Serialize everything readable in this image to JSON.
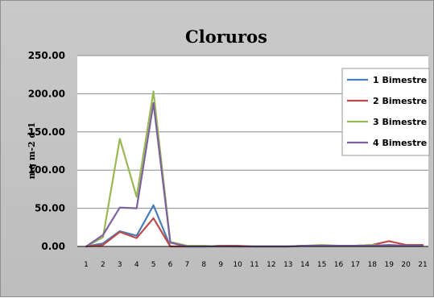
{
  "chart_data": {
    "type": "line",
    "title": "Cloruros",
    "xlabel": "",
    "ylabel": "mg m-2 d-1",
    "ylim": [
      0,
      250
    ],
    "yticks": [
      "0.00",
      "50.00",
      "100.00",
      "150.00",
      "200.00",
      "250.00"
    ],
    "x": [
      "1",
      "2",
      "3",
      "4",
      "5",
      "6",
      "7",
      "8",
      "9",
      "10",
      "11",
      "12",
      "13",
      "14",
      "15",
      "16",
      "17",
      "18",
      "19",
      "20",
      "21"
    ],
    "grid": true,
    "legend_position": "right",
    "series": [
      {
        "name": "1 Bimestre",
        "color": "#4a7ebb",
        "values": [
          0,
          4,
          20,
          14,
          54,
          0,
          0,
          0,
          1,
          0,
          0,
          0,
          0,
          1,
          1,
          1,
          1,
          1,
          1,
          1,
          1
        ]
      },
      {
        "name": "2 Bimestre",
        "color": "#be4b48",
        "values": [
          0,
          2,
          19,
          11,
          37,
          0,
          0,
          0,
          1,
          1,
          0,
          0,
          0,
          1,
          1,
          1,
          1,
          2,
          7,
          2,
          2
        ]
      },
      {
        "name": "3 Bimestre",
        "color": "#98b954",
        "values": [
          0,
          12,
          141,
          65,
          203,
          6,
          1,
          1,
          0,
          0,
          0,
          0,
          0,
          1,
          2,
          1,
          1,
          2,
          1,
          1,
          1
        ]
      },
      {
        "name": "4 Bimestre",
        "color": "#7d60a0",
        "values": [
          0,
          15,
          51,
          50,
          188,
          5,
          0,
          0,
          0,
          0,
          0,
          0,
          0,
          1,
          1,
          1,
          1,
          1,
          2,
          1,
          1
        ]
      }
    ]
  }
}
